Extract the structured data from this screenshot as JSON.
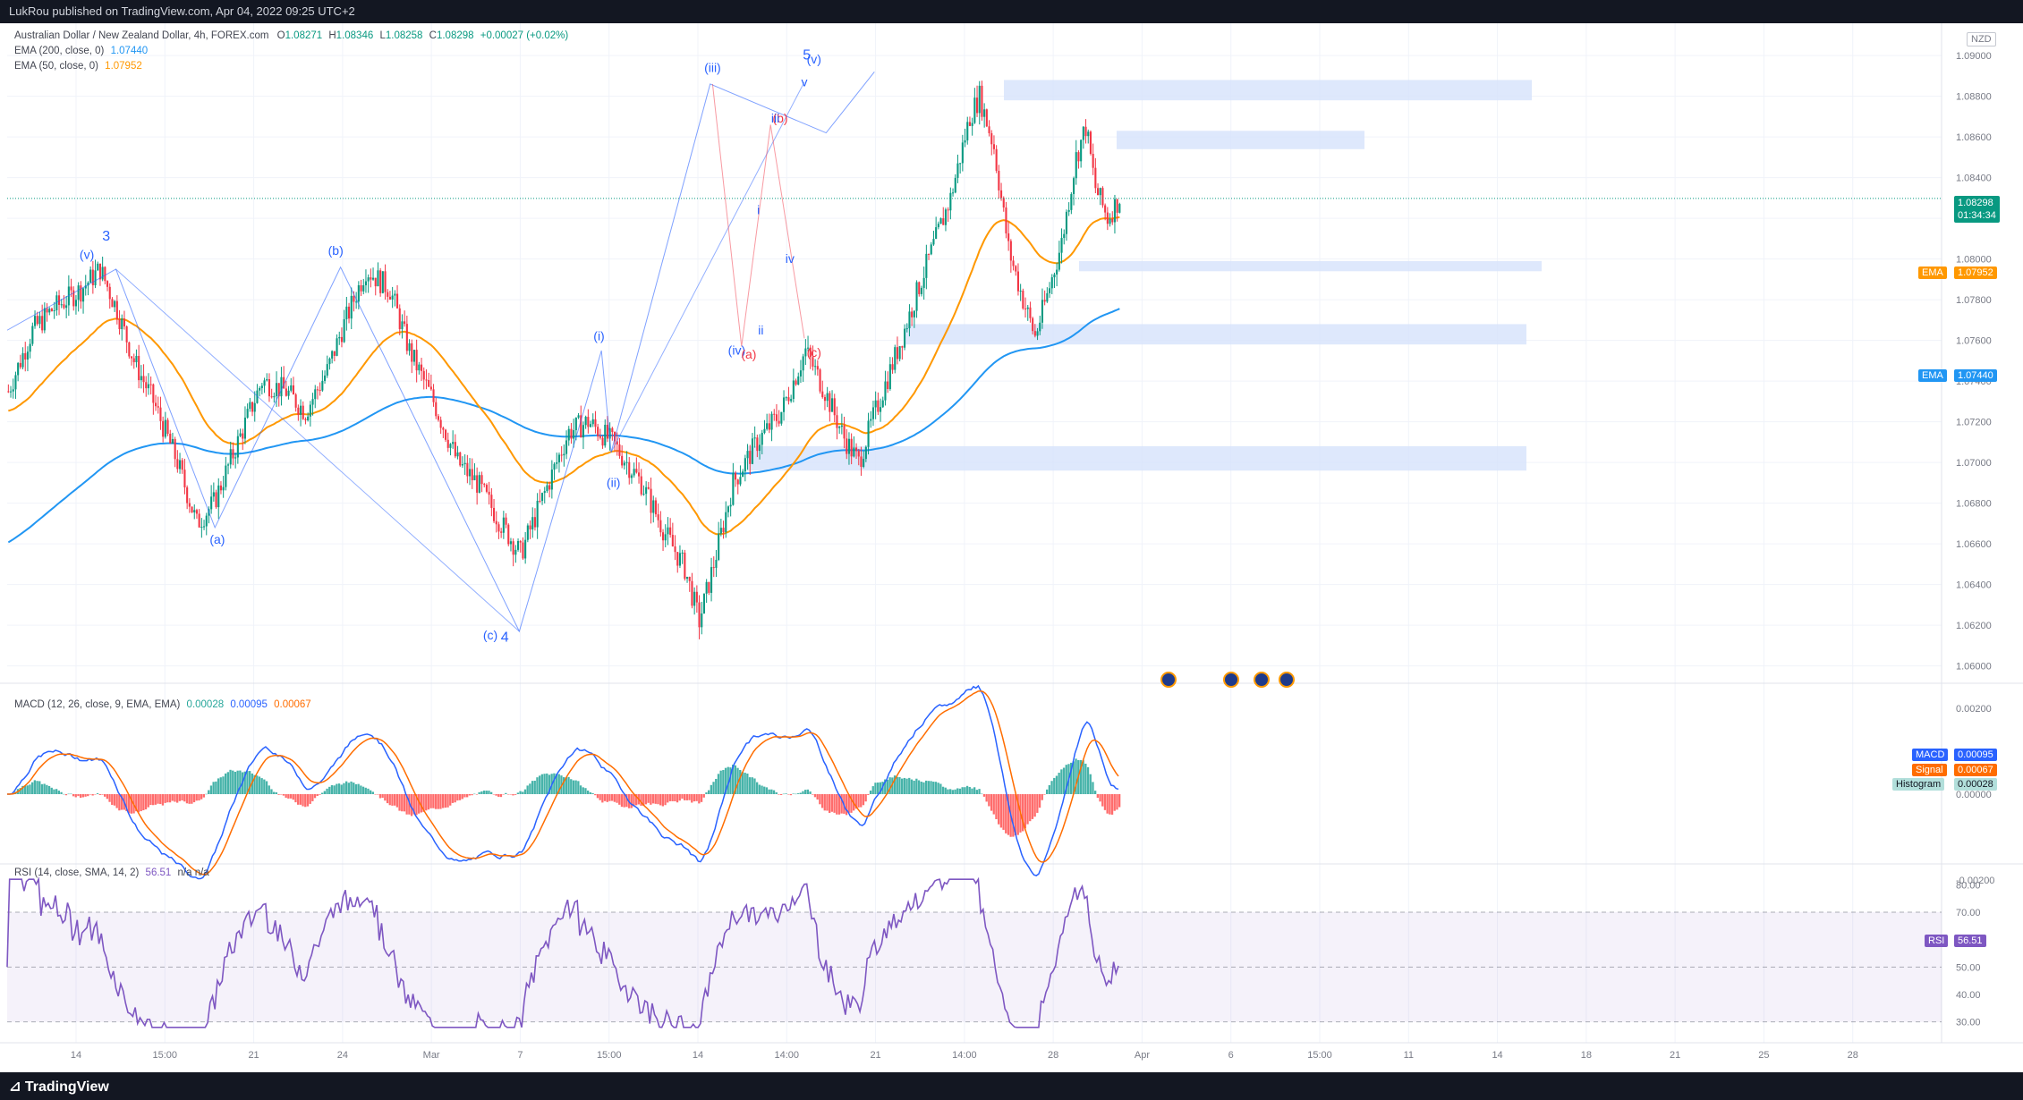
{
  "header": {
    "published": "LukRou published on TradingView.com, Apr 04, 2022 09:25 UTC+2",
    "currency": "NZD"
  },
  "footer": {
    "logo_text": "TradingView"
  },
  "legend": {
    "symbol": "Australian Dollar / New Zealand Dollar, 4h, FOREX.com",
    "o_label": "O",
    "o": "1.08271",
    "h_label": "H",
    "h": "1.08346",
    "l_label": "L",
    "l": "1.08258",
    "c_label": "C",
    "c": "1.08298",
    "change": "+0.00027 (+0.02%)",
    "ema200_label": "EMA (200, close, 0)",
    "ema200": "1.07440",
    "ema50_label": "EMA (50, close, 0)",
    "ema50": "1.07952",
    "macd_label": "MACD (12, 26, close, 9, EMA, EMA)",
    "macd_hist": "0.00028",
    "macd_val": "0.00095",
    "macd_sig": "0.00067",
    "rsi_label": "RSI (14, close, SMA, 14, 2)",
    "rsi_val": "56.51",
    "rsi_na": "n/a  n/a"
  },
  "axis_tags": {
    "price": "1.08298",
    "countdown": "01:34:34",
    "ema_label": "EMA",
    "ema50": "1.07952",
    "ema200": "1.07440",
    "macd_label": "MACD",
    "macd": "0.00095",
    "signal_label": "Signal",
    "signal": "0.00067",
    "hist_label": "Histogram",
    "hist": "0.00028",
    "rsi_label": "RSI",
    "rsi": "56.51"
  },
  "colors": {
    "up": "#089981",
    "down": "#f23645",
    "ema200": "#2196f3",
    "ema50": "#ff9800",
    "wave": "#2962ff",
    "correction": "#f23645",
    "zone": "#d6e2fb",
    "rsi": "#7e57c2"
  },
  "chart_data": [
    {
      "type": "candlestick",
      "title": "Australian Dollar / New Zealand Dollar, 4h, FOREX.com",
      "y_ticks": [
        "1.09000",
        "1.08800",
        "1.08600",
        "1.08400",
        "1.08200",
        "1.08000",
        "1.07800",
        "1.07600",
        "1.07400",
        "1.07200",
        "1.07000",
        "1.06800",
        "1.06600",
        "1.06400",
        "1.06200",
        "1.06000"
      ],
      "ylim": [
        1.0595,
        1.0915
      ],
      "x_ticks": [
        "14",
        "15:00",
        "21",
        "24",
        "Mar",
        "7",
        "15:00",
        "14",
        "14:00",
        "21",
        "14:00",
        "28",
        "Apr",
        "6",
        "15:00",
        "11",
        "14",
        "18",
        "21",
        "25",
        "28"
      ],
      "price_path": [
        [
          0,
          1.0735
        ],
        [
          10,
          1.0765
        ],
        [
          18,
          1.0775
        ],
        [
          30,
          1.0785
        ],
        [
          38,
          1.0795
        ],
        [
          45,
          1.0775
        ],
        [
          52,
          1.075
        ],
        [
          60,
          1.073
        ],
        [
          70,
          1.07
        ],
        [
          78,
          1.067
        ],
        [
          85,
          1.068
        ],
        [
          95,
          1.071
        ],
        [
          105,
          1.074
        ],
        [
          115,
          1.0735
        ],
        [
          123,
          1.0725
        ],
        [
          132,
          1.0745
        ],
        [
          138,
          1.0765
        ],
        [
          148,
          1.0795
        ],
        [
          158,
          1.0785
        ],
        [
          166,
          1.0755
        ],
        [
          176,
          1.073
        ],
        [
          186,
          1.07
        ],
        [
          194,
          1.069
        ],
        [
          204,
          1.067
        ],
        [
          212,
          1.0655
        ],
        [
          222,
          1.0685
        ],
        [
          232,
          1.0715
        ],
        [
          240,
          1.072
        ],
        [
          250,
          1.071
        ],
        [
          262,
          1.069
        ],
        [
          272,
          1.0665
        ],
        [
          280,
          1.0648
        ],
        [
          286,
          1.0622
        ],
        [
          292,
          1.065
        ],
        [
          300,
          1.069
        ],
        [
          310,
          1.071
        ],
        [
          320,
          1.0725
        ],
        [
          330,
          1.0755
        ],
        [
          338,
          1.0735
        ],
        [
          346,
          1.0712
        ],
        [
          352,
          1.07
        ],
        [
          358,
          1.0722
        ],
        [
          368,
          1.0755
        ],
        [
          378,
          1.079
        ],
        [
          390,
          1.083
        ],
        [
          398,
          1.087
        ],
        [
          402,
          1.088
        ],
        [
          408,
          1.0855
        ],
        [
          414,
          1.0805
        ],
        [
          420,
          1.078
        ],
        [
          425,
          1.0762
        ],
        [
          430,
          1.0782
        ],
        [
          436,
          1.0808
        ],
        [
          442,
          1.085
        ],
        [
          446,
          1.0865
        ],
        [
          450,
          1.0835
        ],
        [
          455,
          1.082
        ],
        [
          460,
          1.083
        ]
      ],
      "series": [
        {
          "name": "EMA (200, close, 0)",
          "last": 1.0744
        },
        {
          "name": "EMA (50, close, 0)",
          "last": 1.07952
        }
      ],
      "ohlc_last": {
        "open": 1.08271,
        "high": 1.08346,
        "low": 1.08258,
        "close": 1.08298,
        "change": 0.00027
      },
      "zones": [
        [
          1.0878,
          1.0888
        ],
        [
          1.0854,
          1.0863
        ],
        [
          1.0794,
          1.0799
        ],
        [
          1.0758,
          1.0768
        ],
        [
          1.0696,
          1.0708
        ]
      ],
      "wave_labels": [
        "(v)",
        "3",
        "(a)",
        "(b)",
        "(c)",
        "4",
        "(i)",
        "(ii)",
        "(iii)",
        "(iv)",
        "(a)",
        "(b)",
        "(c)",
        "iii",
        "i",
        "ii",
        "iv",
        "v",
        "(v)",
        "5"
      ]
    },
    {
      "type": "line",
      "title": "MACD (12, 26, close, 9, EMA, EMA)",
      "y_ticks": [
        "0.00200",
        "0.00000",
        "-0.00200"
      ],
      "series": [
        {
          "name": "MACD",
          "last": 0.00095
        },
        {
          "name": "Signal",
          "last": 0.00067
        },
        {
          "name": "Histogram",
          "last": 0.00028
        }
      ]
    },
    {
      "type": "line",
      "title": "RSI (14, close, SMA, 14, 2)",
      "y_ticks": [
        "80.00",
        "70.00",
        "60.00",
        "50.00",
        "40.00",
        "30.00"
      ],
      "ylim": [
        25,
        85
      ],
      "bands": [
        70,
        50,
        30
      ],
      "series": [
        {
          "name": "RSI",
          "last": 56.51
        }
      ]
    }
  ]
}
